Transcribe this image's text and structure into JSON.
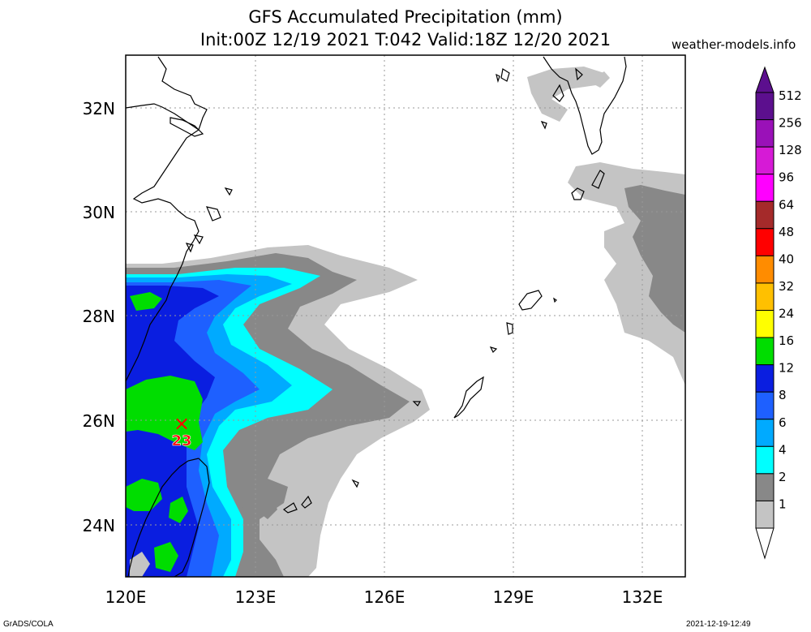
{
  "header": {
    "title": "GFS Accumulated Precipitation (mm)",
    "subtitle": "Init:00Z 12/19 2021 T:042 Valid:18Z 12/20 2021",
    "site": "weather-models.info"
  },
  "footer": {
    "left": "GrADS/COLA",
    "right": "2021-12-19-12:49"
  },
  "axes": {
    "lat_labels": [
      "32N",
      "30N",
      "28N",
      "26N",
      "24N"
    ],
    "lon_labels": [
      "120E",
      "123E",
      "126E",
      "129E",
      "132E"
    ]
  },
  "marker": {
    "symbol": "×",
    "value": "23"
  },
  "colorbar": {
    "levels": [
      {
        "label": "512",
        "color": "#5c0f8e"
      },
      {
        "label": "256",
        "color": "#9a11b8"
      },
      {
        "label": "128",
        "color": "#d61ad6"
      },
      {
        "label": "96",
        "color": "#ff00ff"
      },
      {
        "label": "64",
        "color": "#a52a2a"
      },
      {
        "label": "48",
        "color": "#ff0000"
      },
      {
        "label": "40",
        "color": "#ff8c00"
      },
      {
        "label": "32",
        "color": "#ffc000"
      },
      {
        "label": "24",
        "color": "#ffff00"
      },
      {
        "label": "16",
        "color": "#00dd00"
      },
      {
        "label": "12",
        "color": "#0a1ee0"
      },
      {
        "label": "8",
        "color": "#1e60ff"
      },
      {
        "label": "6",
        "color": "#00aaff"
      },
      {
        "label": "4",
        "color": "#00ffff"
      },
      {
        "label": "2",
        "color": "#888888"
      },
      {
        "label": "1",
        "color": "#c4c4c4"
      }
    ]
  }
}
